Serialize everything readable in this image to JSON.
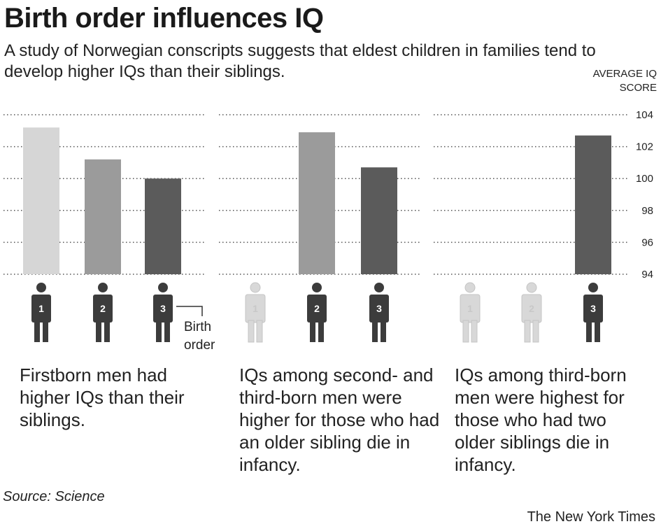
{
  "title": "Birth order influences IQ",
  "subtitle": "A study of Norwegian conscripts suggests that eldest children in families tend to develop higher IQs than their siblings.",
  "ylabel": "AVERAGE IQ SCORE",
  "birth_order_label": "Birth order",
  "source": "Source: Science",
  "credit": "The New York Times",
  "colors": {
    "bar_1": "#d6d6d6",
    "bar_2": "#9b9b9b",
    "bar_3": "#5b5b5b",
    "icon_dark": "#3c3c3c",
    "icon_faded": "#d8d8d8",
    "grid": "#555555"
  },
  "chart_data": {
    "type": "bar",
    "ylabel": "AVERAGE IQ SCORE",
    "ylim": [
      94,
      104
    ],
    "yticks": [
      104,
      102,
      100,
      98,
      96,
      94
    ],
    "grid": true,
    "panels": [
      {
        "categories": [
          "1",
          "2",
          "3"
        ],
        "active": [
          true,
          true,
          true
        ],
        "values": [
          103.2,
          101.2,
          100.0
        ],
        "caption": "Firstborn men had higher IQs than their siblings."
      },
      {
        "categories": [
          "1",
          "2",
          "3"
        ],
        "active": [
          false,
          true,
          true
        ],
        "values": [
          null,
          102.9,
          100.7
        ],
        "caption": "IQs among second- and third-born men were higher for those who had an older sibling die in infancy."
      },
      {
        "categories": [
          "1",
          "2",
          "3"
        ],
        "active": [
          false,
          false,
          true
        ],
        "values": [
          null,
          null,
          102.7
        ],
        "caption": "IQs among third-born men were highest for those who had two older siblings die in infancy."
      }
    ]
  }
}
